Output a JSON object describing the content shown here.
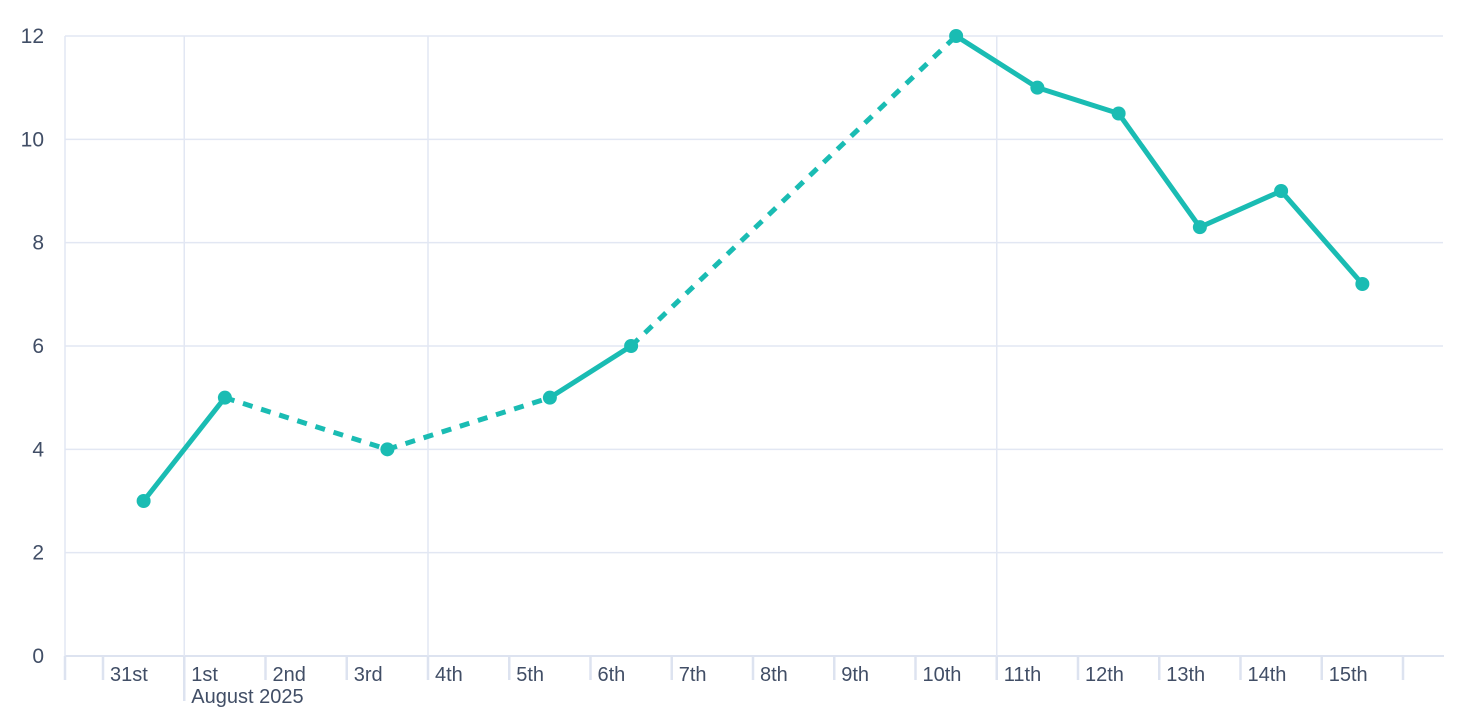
{
  "chart_data": {
    "type": "line",
    "title": "",
    "xlabel": "",
    "ylabel": "",
    "x_tick_labels": [
      "31st",
      "1st",
      "2nd",
      "3rd",
      "4th",
      "5th",
      "6th",
      "7th",
      "8th",
      "9th",
      "10th",
      "11th",
      "12th",
      "13th",
      "14th",
      "15th"
    ],
    "month_label": "August 2025",
    "month_label_under_day": "1st",
    "y_ticks": [
      0,
      2,
      4,
      6,
      8,
      10,
      12
    ],
    "ylim": [
      0,
      12
    ],
    "grid": true,
    "legend": null,
    "points": [
      {
        "label": "31st",
        "day_index": 0,
        "value": 3
      },
      {
        "label": "1st",
        "day_index": 1,
        "value": 5
      },
      {
        "label": "3rd",
        "day_index": 3,
        "value": 4
      },
      {
        "label": "5th",
        "day_index": 5,
        "value": 5
      },
      {
        "label": "6th",
        "day_index": 6,
        "value": 6
      },
      {
        "label": "10th",
        "day_index": 10,
        "value": 12
      },
      {
        "label": "11th",
        "day_index": 11,
        "value": 11
      },
      {
        "label": "12th",
        "day_index": 12,
        "value": 10.5
      },
      {
        "label": "13th",
        "day_index": 13,
        "value": 8.3
      },
      {
        "label": "14th",
        "day_index": 14,
        "value": 9
      },
      {
        "label": "15th",
        "day_index": 15,
        "value": 7.2
      }
    ],
    "segment_styles": [
      "solid",
      "dashed",
      "dashed",
      "solid",
      "dashed",
      "solid",
      "solid",
      "solid",
      "solid",
      "solid"
    ],
    "vertical_gridline_day_indices": [
      1,
      4,
      11
    ],
    "colors": {
      "series": "#1abcb3",
      "grid": "#e2e7f3",
      "axis_line": "#dde3f0",
      "text": "#414e66",
      "background": "#ffffff"
    }
  }
}
